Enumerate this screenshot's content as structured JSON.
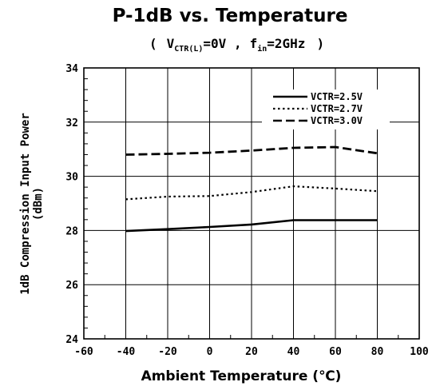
{
  "chart_data": {
    "type": "line",
    "title": "P-1dB vs. Temperature",
    "subtitle": {
      "open": "(",
      "v_symbol": "V",
      "v_sub": "CTR(L)",
      "v_value": "=0V ,",
      "f_symbol": "f",
      "f_sub": "in",
      "f_value": "=2GHz",
      "close": ")"
    },
    "xlabel": "Ambient Temperature (℃)",
    "ylabel": "1dB Compression Input Power",
    "ylabel_unit": "(dBm)",
    "xlim": [
      -60,
      100
    ],
    "ylim": [
      24,
      34
    ],
    "x_ticks": [
      -60,
      -40,
      -20,
      0,
      20,
      40,
      60,
      80,
      100
    ],
    "x_tick_labels": [
      "-60",
      "-40",
      "-20",
      "0",
      "20",
      "40",
      "60",
      "80",
      "100"
    ],
    "y_ticks": [
      24,
      26,
      28,
      30,
      32,
      34
    ],
    "y_tick_labels": [
      "24",
      "26",
      "28",
      "30",
      "32",
      "34"
    ],
    "grid": true,
    "legend_position": "top-right",
    "series": [
      {
        "name": "VCTR=2.5V",
        "style": "solid",
        "x": [
          -40,
          -20,
          0,
          20,
          40,
          60,
          80
        ],
        "y": [
          27.98,
          28.05,
          28.13,
          28.22,
          28.38,
          28.38,
          28.38
        ]
      },
      {
        "name": "VCTR=2.7V",
        "style": "dotted",
        "x": [
          -40,
          -20,
          0,
          20,
          40,
          60,
          80
        ],
        "y": [
          29.15,
          29.25,
          29.27,
          29.42,
          29.63,
          29.55,
          29.45
        ]
      },
      {
        "name": "VCTR=3.0V",
        "style": "dashed",
        "x": [
          -40,
          -20,
          0,
          20,
          40,
          60,
          80
        ],
        "y": [
          30.8,
          30.83,
          30.87,
          30.95,
          31.05,
          31.08,
          30.85
        ]
      }
    ],
    "colors": {
      "line": "#000000",
      "grid": "#000000",
      "background": "#ffffff"
    }
  }
}
